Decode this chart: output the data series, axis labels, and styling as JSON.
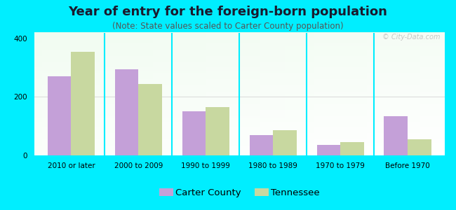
{
  "title": "Year of entry for the foreign-born population",
  "subtitle": "(Note: State values scaled to Carter County population)",
  "categories": [
    "2010 or later",
    "2000 to 2009",
    "1990 to 1999",
    "1980 to 1989",
    "1970 to 1979",
    "Before 1970"
  ],
  "carter_county": [
    270,
    295,
    150,
    70,
    35,
    135
  ],
  "tennessee": [
    355,
    245,
    165,
    85,
    45,
    55
  ],
  "carter_color": "#C4A0D8",
  "tennessee_color": "#C8D8A0",
  "bg_outer": "#00EEFF",
  "ylim": [
    0,
    420
  ],
  "yticks": [
    0,
    200,
    400
  ],
  "bar_width": 0.35,
  "legend_carter": "Carter County",
  "legend_tennessee": "Tennessee",
  "title_fontsize": 13,
  "subtitle_fontsize": 8.5,
  "tick_fontsize": 7.5,
  "legend_fontsize": 9.5
}
